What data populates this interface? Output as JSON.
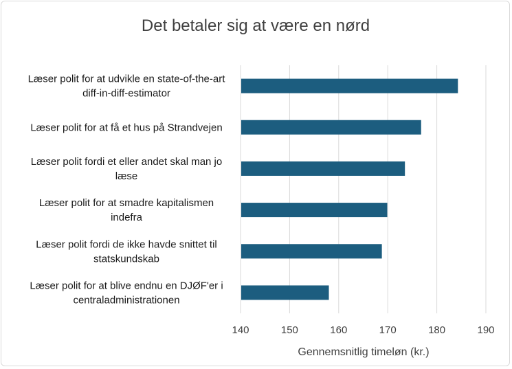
{
  "chart_data": {
    "type": "bar",
    "orientation": "horizontal",
    "title": "Det betaler sig at være en nørd",
    "xlabel": "Gennemsnitlig timeløn (kr.)",
    "ylabel": "",
    "categories": [
      [
        "Læser polit for at udvikle en state-of-the-art",
        "diff-in-diff-estimator"
      ],
      [
        "Læser polit for at få et hus på Strandvejen"
      ],
      [
        "Læser polit fordi et eller andet skal man jo",
        "læse"
      ],
      [
        "Læser polit for at smadre kapitalismen",
        "indefra"
      ],
      [
        "Læser polit fordi de ikke havde snittet til",
        "statskundskab"
      ],
      [
        "Læser polit for at blive endnu en DJØF'er i",
        "centraladministrationen"
      ]
    ],
    "values": [
      184.3,
      176.8,
      173.5,
      169.9,
      168.8,
      158.0
    ],
    "xlim": [
      140,
      190
    ],
    "xticks": [
      "140",
      "150",
      "160",
      "170",
      "180",
      "190"
    ],
    "grid": true,
    "legend": "none",
    "bar_color": "#1c5d7f"
  }
}
